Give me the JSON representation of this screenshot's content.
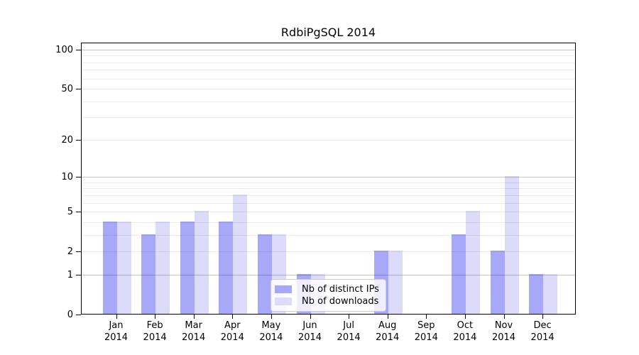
{
  "chart_data": {
    "type": "bar",
    "title": "RdbiPgSQL 2014",
    "categories": [
      "Jan",
      "Feb",
      "Mar",
      "Apr",
      "May",
      "Jun",
      "Jul",
      "Aug",
      "Sep",
      "Oct",
      "Nov",
      "Dec"
    ],
    "year_label": "2014",
    "series": [
      {
        "name": "Nb of distinct IPs",
        "color": "#a8a8f8",
        "values": [
          4,
          3,
          4,
          4,
          3,
          1,
          0,
          2,
          0,
          3,
          2,
          1
        ]
      },
      {
        "name": "Nb of downloads",
        "color": "#dcdcfa",
        "values": [
          4,
          4,
          5,
          7,
          3,
          1,
          0,
          2,
          0,
          5,
          10,
          1
        ]
      }
    ],
    "yscale": "log10(1+x)",
    "ylim": [
      0,
      113
    ],
    "yticks": [
      0,
      1,
      2,
      5,
      10,
      20,
      50,
      100
    ],
    "major_gridlines": [
      1,
      10,
      100
    ],
    "minor_gridlines": [
      2,
      3,
      4,
      5,
      6,
      7,
      8,
      9,
      20,
      30,
      40,
      50,
      60,
      70,
      80,
      90
    ],
    "grid": true,
    "legend_position": "lower center",
    "xlabel": "",
    "ylabel": ""
  }
}
